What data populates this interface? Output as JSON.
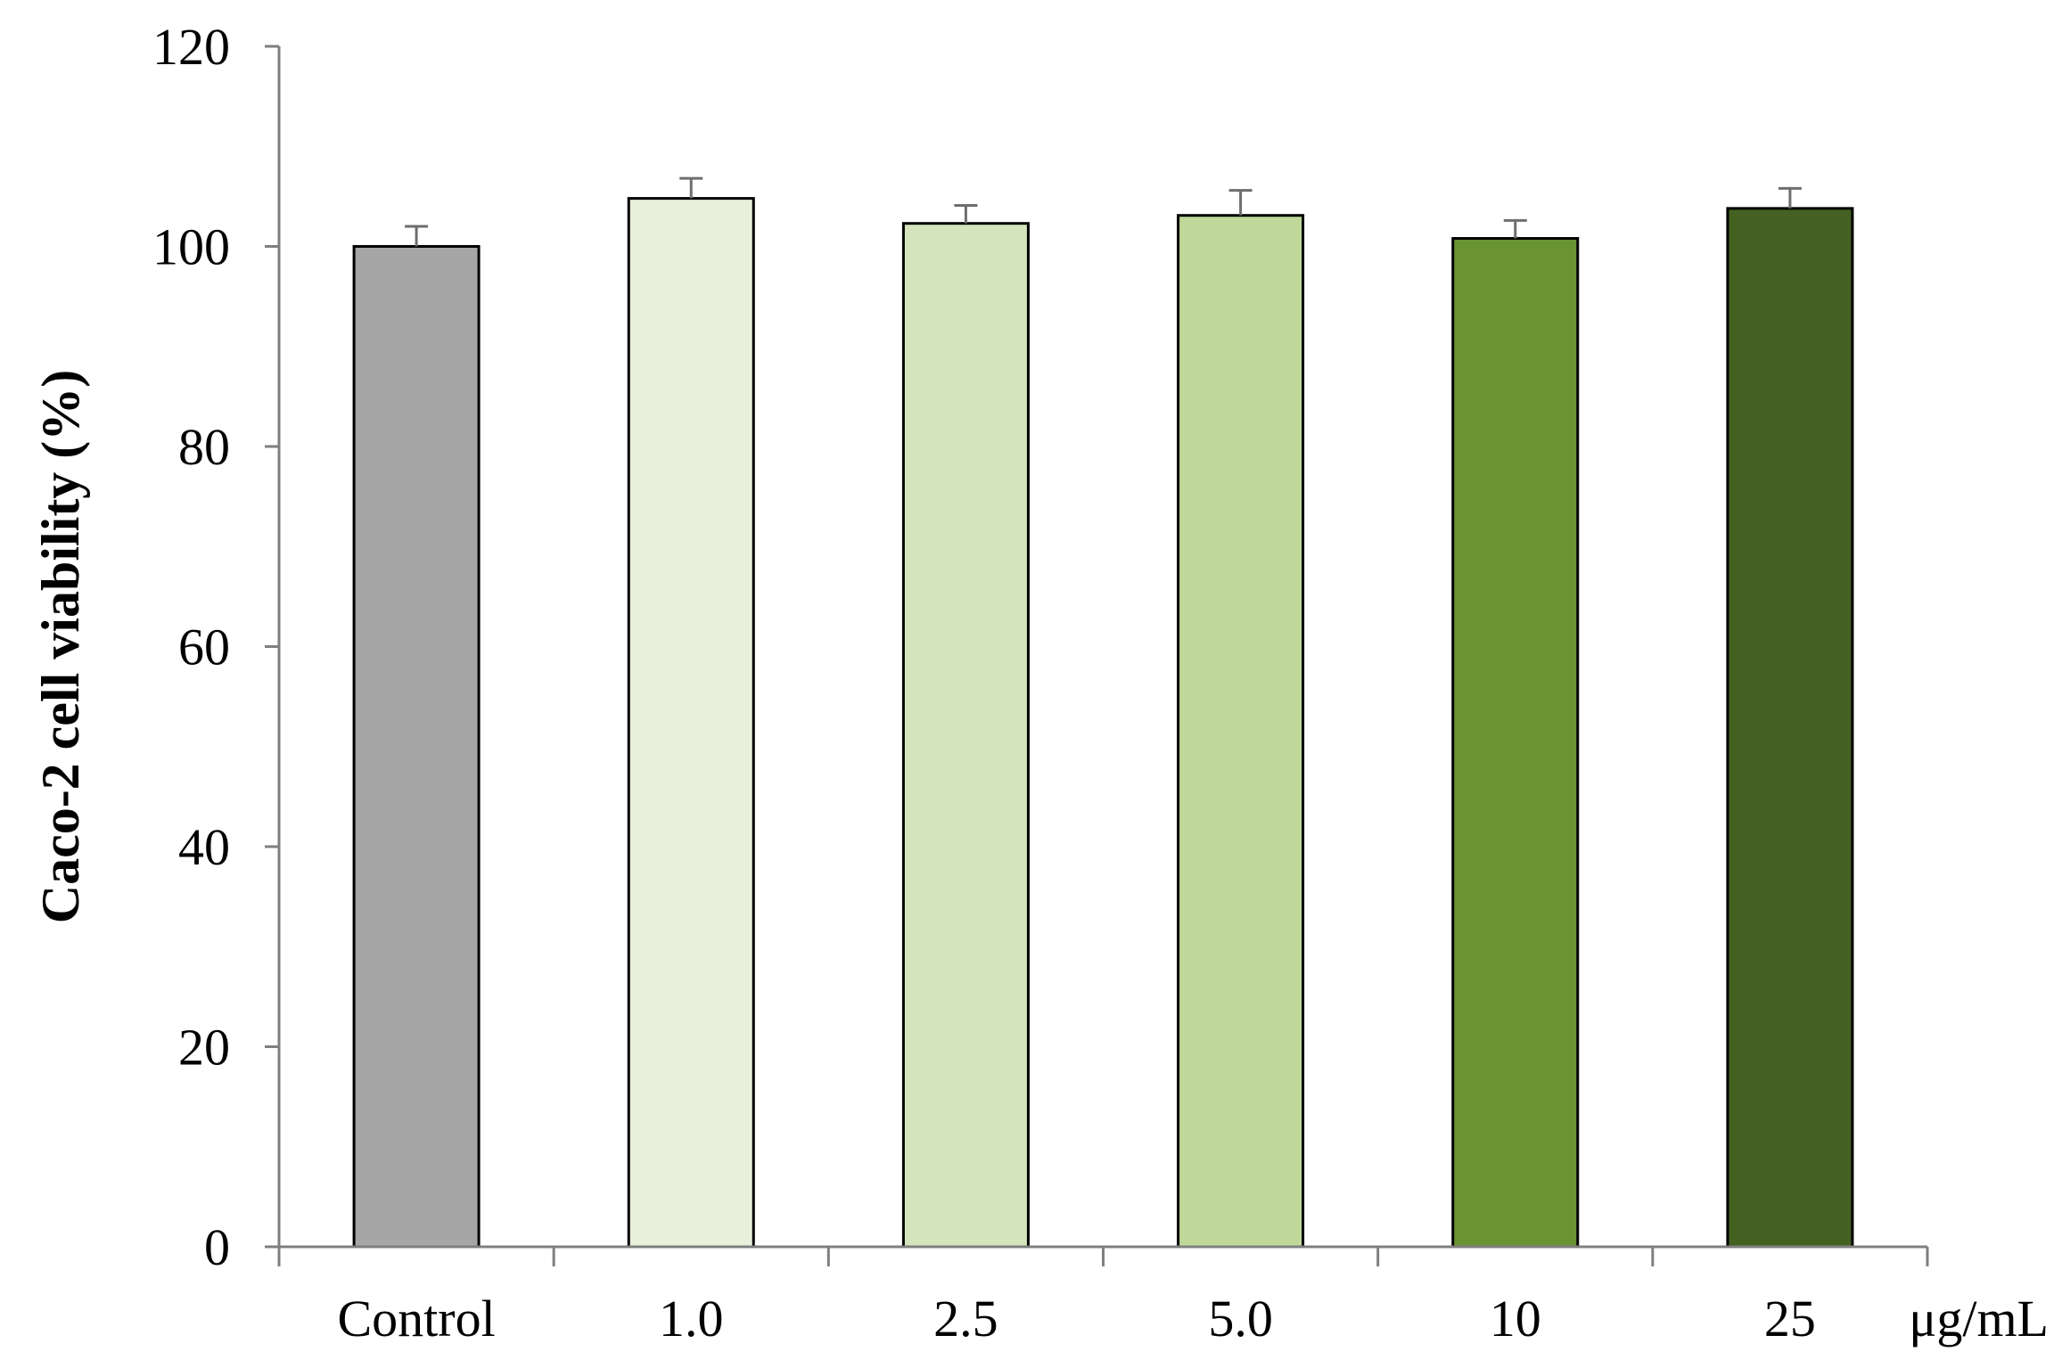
{
  "chart_data": {
    "type": "bar",
    "categories": [
      "Control",
      "1.0",
      "2.5",
      "5.0",
      "10",
      "25"
    ],
    "values": [
      100,
      104.8,
      102.3,
      103.1,
      100.8,
      103.8
    ],
    "errors": [
      2.0,
      2.0,
      1.8,
      2.5,
      1.8,
      2.0
    ],
    "colors": [
      "#a6a6a6",
      "#e8f0dc",
      "#d4e5bc",
      "#bfd89a",
      "#6a9432",
      "#446121"
    ],
    "ylabel": "Caco-2 cell viability (%)",
    "x_unit_label": "μg/mL",
    "ylim": [
      0,
      120
    ],
    "yticks": [
      0,
      20,
      40,
      60,
      80,
      100,
      120
    ],
    "grid": false
  }
}
